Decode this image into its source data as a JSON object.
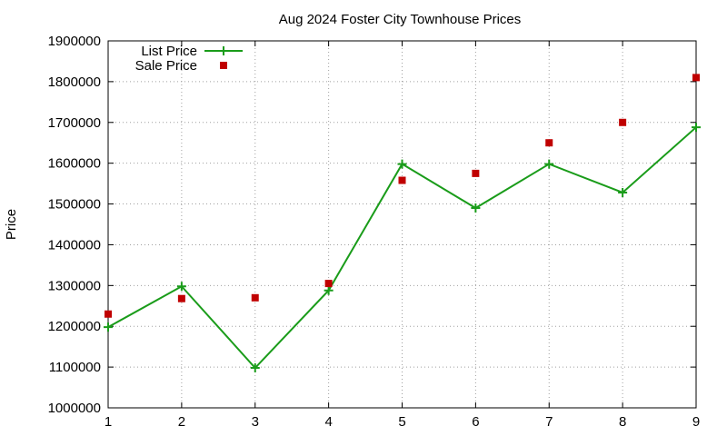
{
  "chart_data": {
    "type": "line",
    "title": "Aug 2024 Foster City Townhouse Prices",
    "xlabel": "",
    "ylabel": "Price",
    "x": [
      1,
      2,
      3,
      4,
      5,
      6,
      7,
      8,
      9
    ],
    "xlim": [
      1,
      9
    ],
    "ylim": [
      1000000,
      1900000
    ],
    "xticks": [
      "1",
      "2",
      "3",
      "4",
      "5",
      "6",
      "7",
      "8",
      "9"
    ],
    "yticks": [
      1000000,
      1100000,
      1200000,
      1300000,
      1400000,
      1500000,
      1600000,
      1700000,
      1800000,
      1900000
    ],
    "grid": true,
    "legend_position": "top-left",
    "series": [
      {
        "name": "List Price",
        "style": "line-plus",
        "color": "#1a9c1a",
        "values": [
          1198000,
          1298000,
          1098000,
          1288000,
          1598000,
          1490000,
          1598000,
          1528000,
          1688000
        ]
      },
      {
        "name": "Sale Price",
        "style": "square-points",
        "color": "#c00000",
        "values": [
          1230000,
          1268000,
          1270000,
          1305000,
          1558000,
          1575000,
          1650000,
          1700000,
          1810000
        ]
      }
    ]
  }
}
